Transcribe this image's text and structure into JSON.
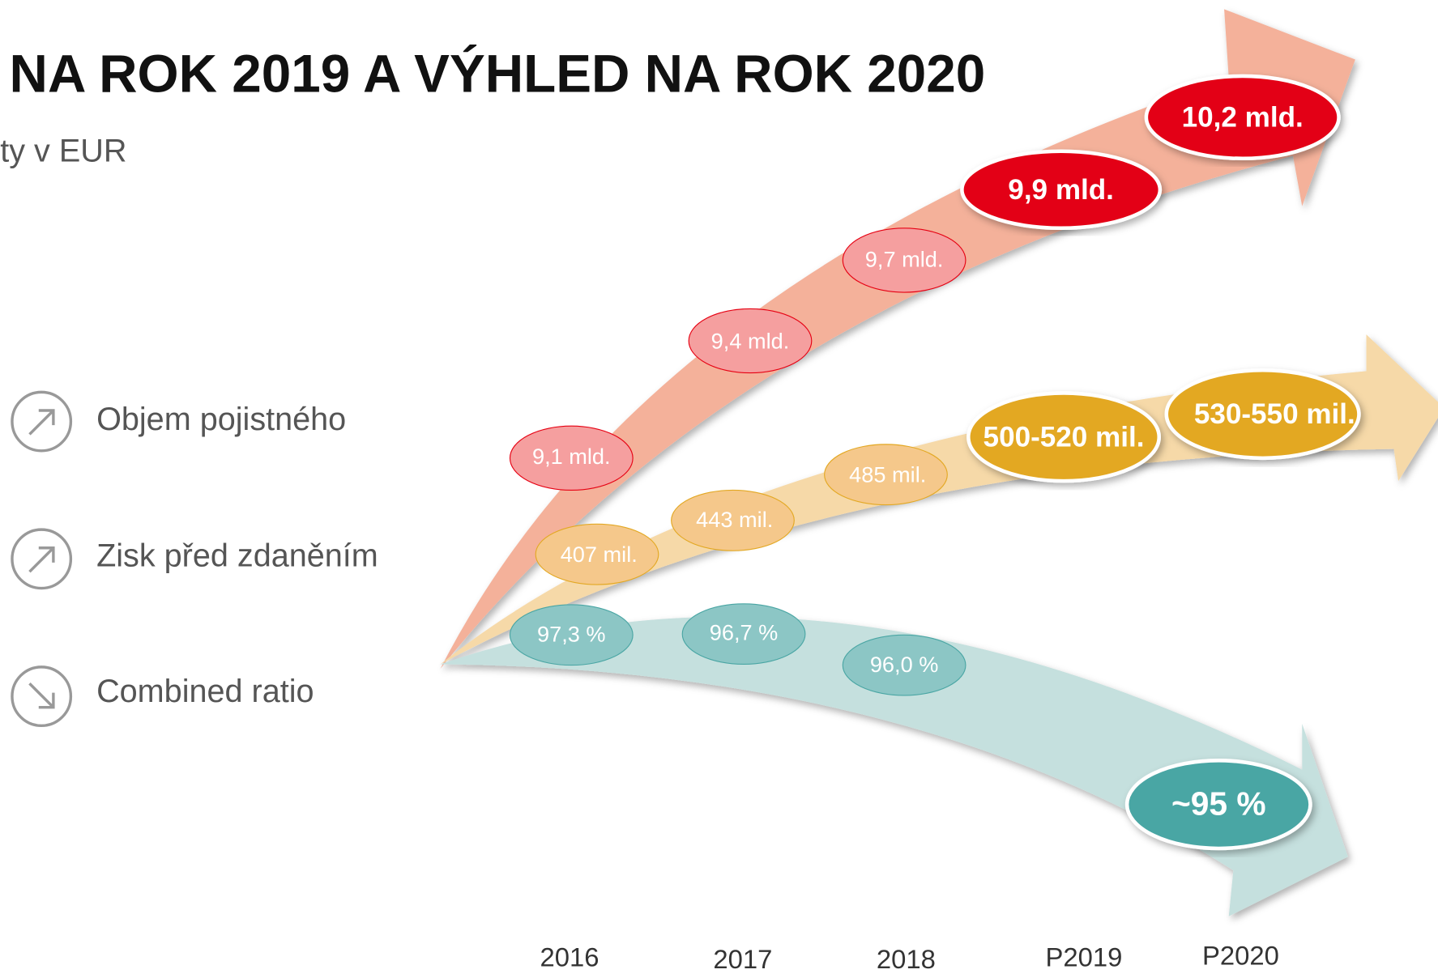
{
  "title": "NA ROK 2019 A VÝHLED NA ROK 2020",
  "subtitle": "ty v EUR",
  "legend": [
    {
      "label": "Objem pojistného"
    },
    {
      "label": "Zisk před zdaněním"
    },
    {
      "label": "Combined ratio"
    }
  ],
  "series": [
    {
      "labels": [
        "9,1 mld.",
        "9,4 mld.",
        "9,7 mld.",
        "9,9 mld.",
        "10,2 mld."
      ]
    },
    {
      "labels": [
        "407 mil.",
        "443 mil.",
        "485 mil.",
        "500-520 mil.",
        "530-550 mil."
      ]
    },
    {
      "labels": [
        "97,3 %",
        "96,7 %",
        "96,0 %",
        "~95 %"
      ]
    }
  ],
  "years": [
    "2016",
    "2017",
    "2018",
    "P2019",
    "P2020"
  ]
}
